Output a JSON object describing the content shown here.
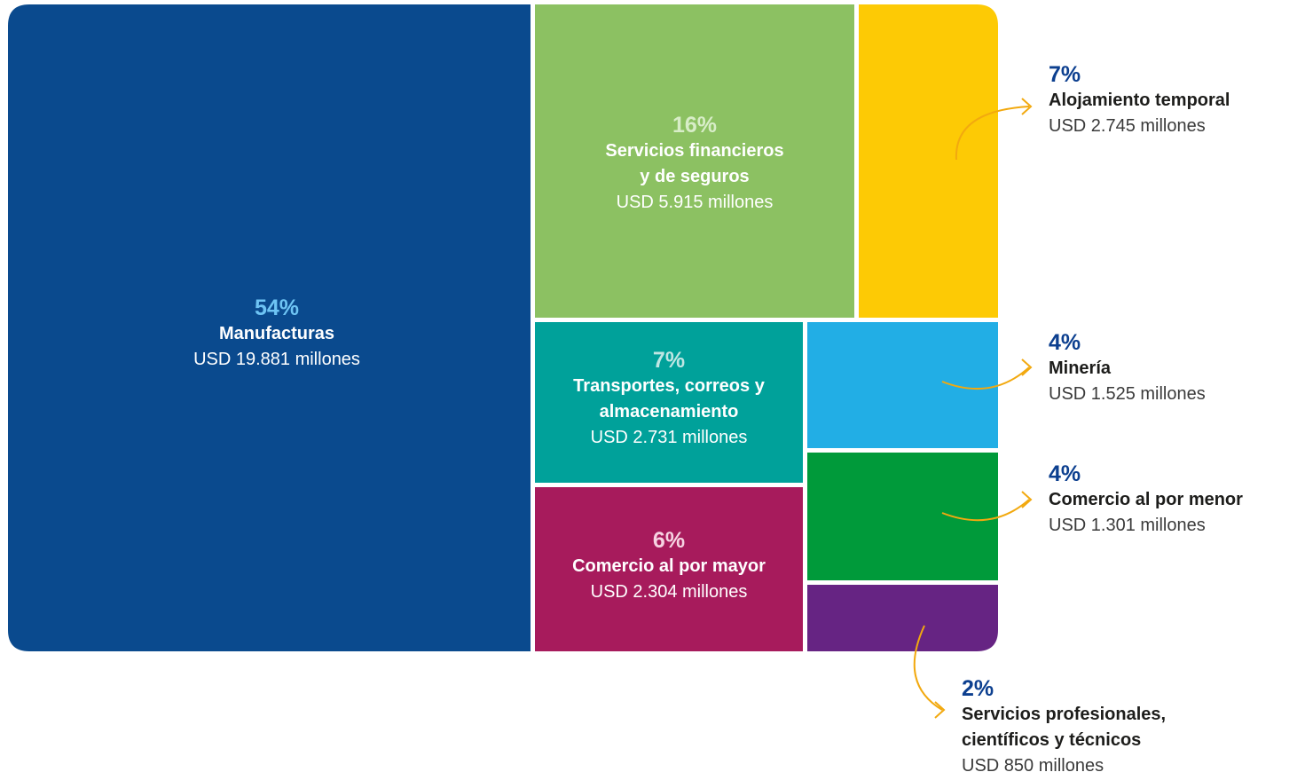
{
  "chart_data": {
    "type": "treemap",
    "unit": "USD millones",
    "items": [
      {
        "id": "manufacturas",
        "pct": "54%",
        "label": "Manufacturas",
        "value_text": "USD 19.881 millones",
        "value": 19881,
        "color": "#0a4a8e",
        "pct_color": "#6ec4f4"
      },
      {
        "id": "financieros",
        "pct": "16%",
        "label": "Servicios financieros\ny de seguros",
        "value_text": "USD 5.915 millones",
        "value": 5915,
        "color": "#8cc162",
        "pct_color": "#d8edc8"
      },
      {
        "id": "alojamiento",
        "pct": "7%",
        "label": "Alojamiento temporal",
        "value_text": "USD 2.745 millones",
        "value": 2745,
        "color": "#fdca05",
        "pct_color": "#0c3f8f"
      },
      {
        "id": "transportes",
        "pct": "7%",
        "label": "Transportes, correos y\nalmacenamiento",
        "value_text": "USD 2.731 millones",
        "value": 2731,
        "color": "#00a19a",
        "pct_color": "#bfe6e3"
      },
      {
        "id": "mayor",
        "pct": "6%",
        "label": "Comercio al por mayor",
        "value_text": "USD 2.304 millones",
        "value": 2304,
        "color": "#a71b5c",
        "pct_color": "#f6d3e2"
      },
      {
        "id": "mineria",
        "pct": "4%",
        "label": "Minería",
        "value_text": "USD 1.525 millones",
        "value": 1525,
        "color": "#22aee5",
        "pct_color": "#0c3f8f"
      },
      {
        "id": "menor",
        "pct": "4%",
        "label": "Comercio al por menor",
        "value_text": "USD 1.301 millones",
        "value": 1301,
        "color": "#009a3a",
        "pct_color": "#0c3f8f"
      },
      {
        "id": "profesionales",
        "pct": "2%",
        "label": "Servicios profesionales,\ncientíficos y técnicos",
        "value_text": "USD 850 millones",
        "value": 850,
        "color": "#662483",
        "pct_color": "#0c3f8f"
      }
    ],
    "arrow_color": "#f2a90f"
  }
}
